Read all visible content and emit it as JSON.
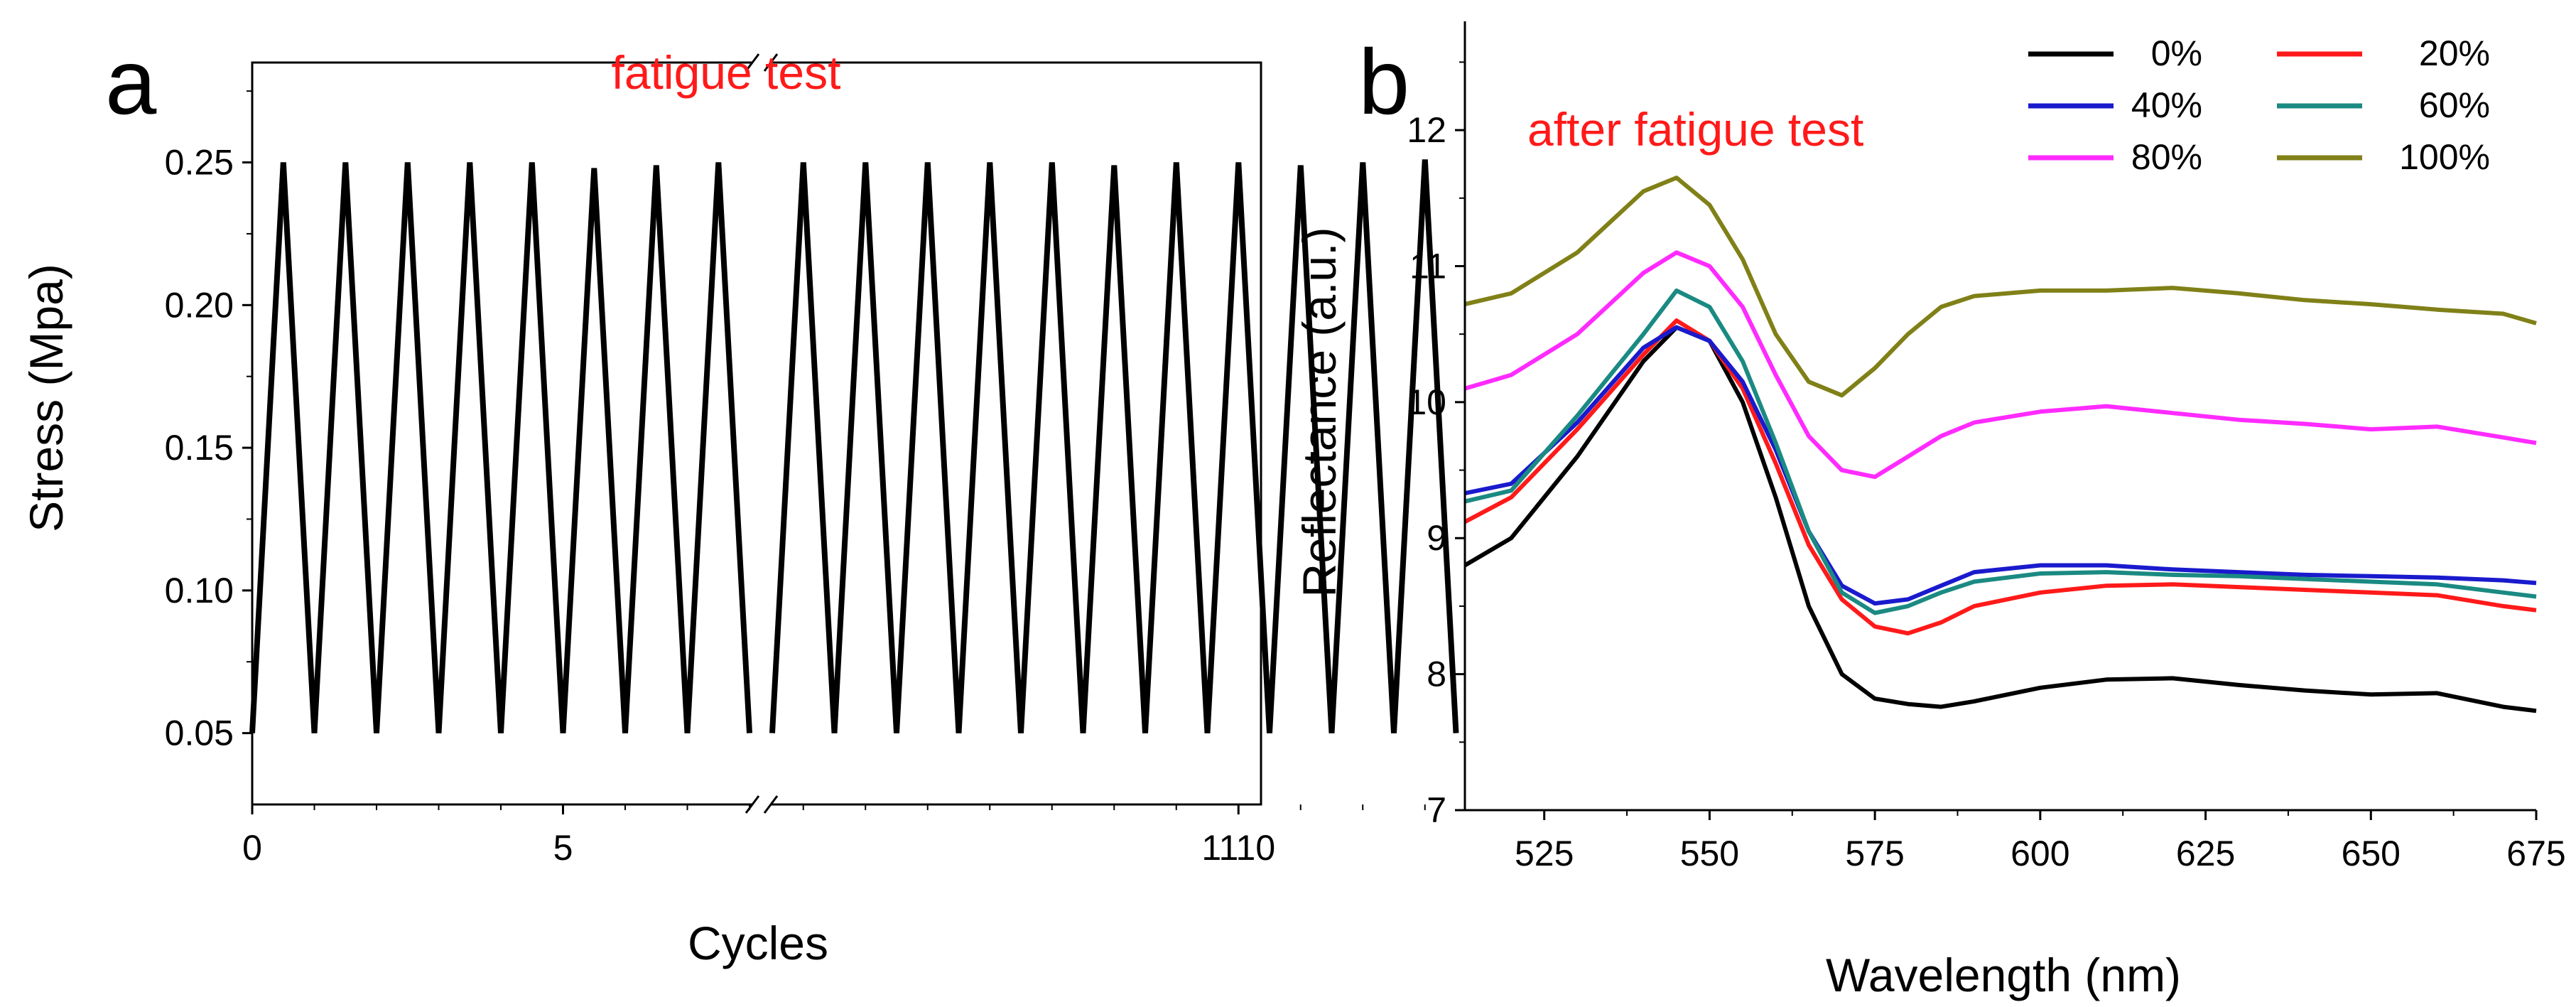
{
  "chart_data": [
    {
      "panel": "a",
      "type": "line",
      "annotation": "fatigue test",
      "annotation_color": "#ff1a1a",
      "xlabel": "Cycles",
      "ylabel": "Stress (Mpa)",
      "x_ticks": [
        "0",
        "5",
        "1110"
      ],
      "y_ticks": [
        "0.05",
        "0.10",
        "0.15",
        "0.20",
        "0.25"
      ],
      "ylim": [
        0.025,
        0.285
      ],
      "axis_break": true,
      "series": [
        {
          "color": "#000000",
          "segments": [
            {
              "x": [
                0,
                0.5,
                1.0,
                1.5,
                2.0,
                2.5,
                3.0,
                3.5,
                4.0,
                4.5,
                5.0,
                5.5,
                6.0,
                6.5,
                7.0,
                7.5,
                8.0
              ],
              "y": [
                0.05,
                0.25,
                0.05,
                0.25,
                0.05,
                0.25,
                0.05,
                0.25,
                0.05,
                0.25,
                0.05,
                0.248,
                0.05,
                0.249,
                0.05,
                0.25,
                0.05
              ]
            },
            {
              "x": [
                1102.5,
                1103,
                1103.5,
                1104,
                1104.5,
                1105,
                1105.5,
                1106,
                1106.5,
                1107,
                1107.5,
                1108,
                1108.5,
                1109,
                1109.5,
                1110,
                1110.5,
                1111,
                1111.5,
                1112,
                1112.5,
                1113,
                1113.5
              ],
              "y": [
                0.05,
                0.25,
                0.05,
                0.25,
                0.05,
                0.25,
                0.05,
                0.25,
                0.05,
                0.25,
                0.05,
                0.249,
                0.05,
                0.25,
                0.05,
                0.25,
                0.05,
                0.249,
                0.05,
                0.25,
                0.05,
                0.251,
                0.05
              ]
            }
          ]
        }
      ]
    },
    {
      "panel": "b",
      "type": "line",
      "annotation": "after fatigue test",
      "annotation_color": "#ff1a1a",
      "xlabel": "Wavelength (nm)",
      "ylabel": "Reflectance (a.u.)",
      "xlim": [
        513,
        675
      ],
      "ylim": [
        7,
        12.8
      ],
      "x_ticks": [
        "525",
        "550",
        "575",
        "600",
        "625",
        "650",
        "675"
      ],
      "y_ticks": [
        "7",
        "8",
        "9",
        "10",
        "11",
        "12"
      ],
      "legend_position": "top-right",
      "x": [
        513,
        520,
        530,
        540,
        545,
        550,
        555,
        560,
        565,
        570,
        575,
        580,
        585,
        590,
        600,
        610,
        620,
        630,
        640,
        650,
        660,
        670,
        675
      ],
      "series": [
        {
          "name": "0%",
          "color": "#000000",
          "values": [
            8.8,
            9.0,
            9.6,
            10.3,
            10.55,
            10.45,
            10.0,
            9.3,
            8.5,
            8.0,
            7.82,
            7.78,
            7.76,
            7.8,
            7.9,
            7.96,
            7.97,
            7.92,
            7.88,
            7.85,
            7.86,
            7.76,
            7.73
          ]
        },
        {
          "name": "20%",
          "color": "#ff1a1a",
          "values": [
            9.12,
            9.3,
            9.8,
            10.35,
            10.6,
            10.45,
            10.1,
            9.55,
            8.95,
            8.55,
            8.35,
            8.3,
            8.38,
            8.5,
            8.6,
            8.65,
            8.66,
            8.64,
            8.62,
            8.6,
            8.58,
            8.5,
            8.47
          ]
        },
        {
          "name": "40%",
          "color": "#1a1acd",
          "values": [
            9.33,
            9.4,
            9.85,
            10.4,
            10.55,
            10.45,
            10.15,
            9.65,
            9.05,
            8.65,
            8.52,
            8.55,
            8.65,
            8.75,
            8.8,
            8.8,
            8.77,
            8.75,
            8.73,
            8.72,
            8.71,
            8.69,
            8.67
          ]
        },
        {
          "name": "60%",
          "color": "#1a8a82",
          "values": [
            9.27,
            9.35,
            9.9,
            10.5,
            10.82,
            10.7,
            10.3,
            9.7,
            9.05,
            8.6,
            8.45,
            8.5,
            8.6,
            8.68,
            8.74,
            8.75,
            8.73,
            8.72,
            8.7,
            8.68,
            8.66,
            8.6,
            8.57
          ]
        },
        {
          "name": "80%",
          "color": "#ff2bff",
          "values": [
            10.1,
            10.2,
            10.5,
            10.95,
            11.1,
            11.0,
            10.7,
            10.2,
            9.75,
            9.5,
            9.45,
            9.6,
            9.75,
            9.85,
            9.93,
            9.97,
            9.92,
            9.87,
            9.84,
            9.8,
            9.82,
            9.74,
            9.7
          ]
        },
        {
          "name": "100%",
          "color": "#808018",
          "values": [
            10.72,
            10.8,
            11.1,
            11.55,
            11.65,
            11.45,
            11.05,
            10.5,
            10.15,
            10.05,
            10.25,
            10.5,
            10.7,
            10.78,
            10.82,
            10.82,
            10.84,
            10.8,
            10.75,
            10.72,
            10.68,
            10.65,
            10.58
          ]
        }
      ]
    }
  ]
}
